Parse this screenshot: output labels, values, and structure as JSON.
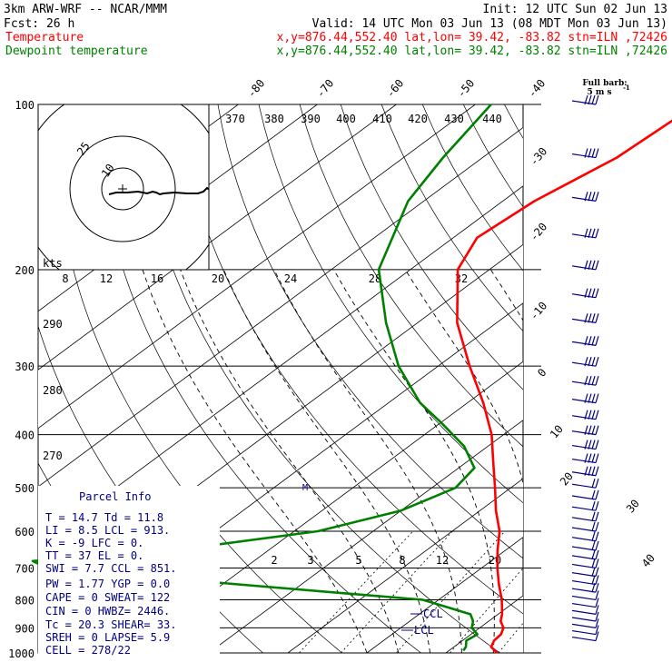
{
  "colors": {
    "temperature": "#ff0000",
    "dewpoint": "#008000",
    "navy": "#000080",
    "isobar": "#000000",
    "grid": "#000000",
    "shade": "#dcdcdc"
  },
  "header": {
    "model": "3km ARW-WRF -- NCAR/MMM",
    "init": "Init: 12 UTC Sun 02 Jun 13",
    "fcst": "Fcst:    26 h",
    "valid": "Valid: 14 UTC Mon 03 Jun 13 (08 MDT Mon 03 Jun 13)",
    "temp_line": {
      "label": "Temperature",
      "info": "x,y=876.44,552.40   lat,lon= 39.42, -83.82  stn=ILN ,72426"
    },
    "dew_line": {
      "label": "Dewpoint temperature",
      "info": "x,y=876.44,552.40   lat,lon= 39.42, -83.82  stn=ILN ,72426"
    }
  },
  "barb_key": {
    "line1": "Full barb:",
    "line2": "5 m s",
    "sup": "-1"
  },
  "hodograph": {
    "ring_labels": [
      "25",
      "10"
    ],
    "units_label": "kts"
  },
  "parcel_info": {
    "title": "Parcel Info",
    "lines": [
      "T  =   14.7 Td =  11.8",
      "LI =    8.5 LCL =  913.",
      "K  =     -9 LFC =    0.",
      "TT =     37 EL  =    0.",
      "SWI =   7.7 CCL =  851.",
      "PW =   1.77 YGP =   0.0",
      "CAPE =    0 SWEAT=  122",
      "CIN  =    0 HWBZ= 2446.",
      "Tc  =  20.3 SHEAR=  33.",
      "SREH =    0 LAPSE=  5.9",
      "CELL = 278/22"
    ]
  },
  "annotations": {
    "ccl": "CCL",
    "lcl": "LCL",
    "marker": "M"
  },
  "chart_data": {
    "type": "line",
    "diagram": "skew-T log-p",
    "pressure_axis": {
      "scale": "log",
      "range_hPa": [
        1000,
        100
      ],
      "ticks": [
        100,
        200,
        300,
        400,
        500,
        600,
        700,
        800,
        900,
        1000
      ]
    },
    "isotherm_labels": [
      "-80",
      "-70",
      "-60",
      "-50",
      "-40",
      "-30",
      "-20",
      "-10",
      "0",
      "10",
      "20",
      "30",
      "40"
    ],
    "isotherm_values": [
      -80,
      -70,
      -60,
      -50,
      -40,
      -30,
      -20,
      -10,
      0,
      10,
      20,
      30,
      40
    ],
    "theta_labels": [
      "370",
      "380",
      "390",
      "400",
      "410",
      "420",
      "430",
      "440"
    ],
    "top_theta_labels": [
      "20",
      "24",
      "28",
      "32"
    ],
    "mixing_ratio_top": [
      "8",
      "12",
      "16"
    ],
    "theta_left_labels": [
      "290",
      "280",
      "270"
    ],
    "mixing_ratio_labels": [
      "2",
      "3",
      "5",
      "8",
      "12",
      "20"
    ],
    "series": [
      {
        "name": "Temperature",
        "points": [
          {
            "p": 1000,
            "t": 16.5
          },
          {
            "p": 975,
            "t": 14.7
          },
          {
            "p": 950,
            "t": 14.0
          },
          {
            "p": 925,
            "t": 13.8
          },
          {
            "p": 900,
            "t": 13.0
          },
          {
            "p": 875,
            "t": 11.5
          },
          {
            "p": 850,
            "t": 10.5
          },
          {
            "p": 800,
            "t": 8.0
          },
          {
            "p": 750,
            "t": 5.0
          },
          {
            "p": 700,
            "t": 2.0
          },
          {
            "p": 650,
            "t": -1.0
          },
          {
            "p": 600,
            "t": -4.0
          },
          {
            "p": 550,
            "t": -8.0
          },
          {
            "p": 500,
            "t": -12.0
          },
          {
            "p": 450,
            "t": -16.5
          },
          {
            "p": 400,
            "t": -21.5
          },
          {
            "p": 350,
            "t": -28.0
          },
          {
            "p": 300,
            "t": -36.0
          },
          {
            "p": 250,
            "t": -45.0
          },
          {
            "p": 200,
            "t": -54.0
          },
          {
            "p": 175,
            "t": -57.0
          },
          {
            "p": 150,
            "t": -56.0
          },
          {
            "p": 125,
            "t": -53.0
          },
          {
            "p": 100,
            "t": -52.0
          }
        ]
      },
      {
        "name": "Dewpoint temperature",
        "points": [
          {
            "p": 990,
            "t": 11.8
          },
          {
            "p": 975,
            "t": 11.5
          },
          {
            "p": 950,
            "t": 10.5
          },
          {
            "p": 925,
            "t": 10.8
          },
          {
            "p": 900,
            "t": 9.0
          },
          {
            "p": 875,
            "t": 8.0
          },
          {
            "p": 850,
            "t": 6.5
          },
          {
            "p": 800,
            "t": -2.0
          },
          {
            "p": 750,
            "t": -28.0
          },
          {
            "p": 700,
            "t": -55.0
          },
          {
            "p": 680,
            "t": -58.0
          },
          {
            "p": 650,
            "t": -42.0
          },
          {
            "p": 600,
            "t": -27.0
          },
          {
            "p": 550,
            "t": -20.0
          },
          {
            "p": 500,
            "t": -17.0
          },
          {
            "p": 460,
            "t": -18.0
          },
          {
            "p": 420,
            "t": -23.0
          },
          {
            "p": 380,
            "t": -30.0
          },
          {
            "p": 350,
            "t": -36.0
          },
          {
            "p": 300,
            "t": -45.0
          },
          {
            "p": 250,
            "t": -54.0
          },
          {
            "p": 200,
            "t": -64.0
          },
          {
            "p": 150,
            "t": -72.0
          },
          {
            "p": 125,
            "t": -75.0
          },
          {
            "p": 100,
            "t": -78.0
          }
        ]
      }
    ],
    "wind_barbs_kts_at_levels": "right column, westerly flow, 100-1000 hPa"
  }
}
